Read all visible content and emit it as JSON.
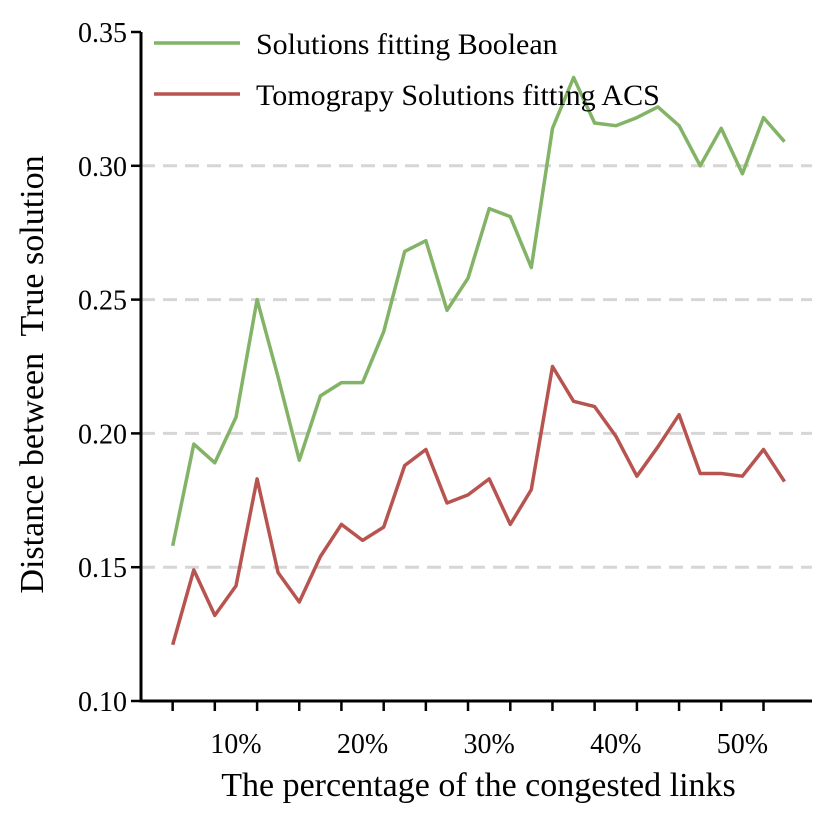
{
  "chart_data": {
    "type": "line",
    "title": "",
    "xlabel": "The percentage of the congested links",
    "ylabel": "Distance between  True solution",
    "ylim": [
      0.1,
      0.35
    ],
    "xlim": [
      2.5,
      55.5
    ],
    "grid": "horizontal-dashed",
    "legend_position": "top-left",
    "x_ticks": [
      10,
      20,
      30,
      40,
      50
    ],
    "x_tick_labels": [
      "10%",
      "20%",
      "30%",
      "40%",
      "50%"
    ],
    "y_ticks": [
      0.1,
      0.15,
      0.2,
      0.25,
      0.3,
      0.35
    ],
    "y_tick_labels": [
      "0.10",
      "0.15",
      "0.20",
      "0.25",
      "0.30",
      "0.35"
    ],
    "x": [
      5.0,
      6.67,
      8.33,
      10.0,
      11.67,
      13.33,
      15.0,
      16.67,
      18.33,
      20.0,
      21.67,
      23.33,
      25.0,
      26.67,
      28.33,
      30.0,
      31.67,
      33.33,
      35.0,
      36.67,
      38.33,
      40.0,
      41.67,
      43.33,
      45.0,
      46.67,
      48.33,
      50.0,
      51.67,
      53.33
    ],
    "series": [
      {
        "name": "Solutions fitting Boolean",
        "color": "#82b366",
        "values": [
          0.158,
          0.196,
          0.189,
          0.206,
          0.25,
          0.221,
          0.19,
          0.214,
          0.219,
          0.219,
          0.238,
          0.268,
          0.272,
          0.246,
          0.258,
          0.284,
          0.281,
          0.262,
          0.314,
          0.333,
          0.316,
          0.315,
          0.318,
          0.322,
          0.315,
          0.3,
          0.314,
          0.297,
          0.318,
          0.309
        ]
      },
      {
        "name": "Tomograpy  Solutions fitting ACS",
        "color": "#b85450",
        "values": [
          0.121,
          0.149,
          0.132,
          0.143,
          0.183,
          0.148,
          0.137,
          0.154,
          0.166,
          0.16,
          0.165,
          0.188,
          0.194,
          0.174,
          0.177,
          0.183,
          0.166,
          0.179,
          0.225,
          0.212,
          0.21,
          0.199,
          0.184,
          0.195,
          0.207,
          0.185,
          0.185,
          0.184,
          0.194,
          0.182
        ]
      }
    ]
  }
}
